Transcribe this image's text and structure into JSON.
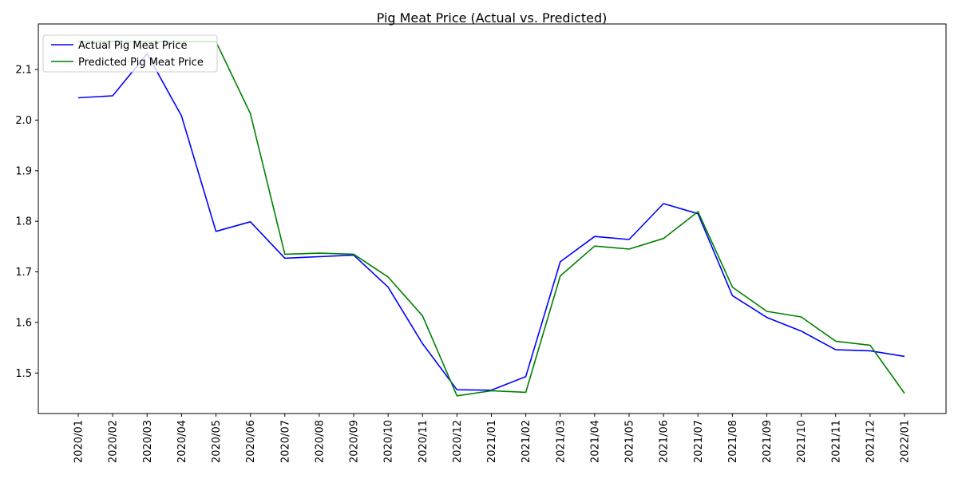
{
  "chart_data": {
    "type": "line",
    "title": "Pig Meat Price (Actual vs. Predicted)",
    "xlabel": "",
    "ylabel": "",
    "categories": [
      "2020/01",
      "2020/02",
      "2020/03",
      "2020/04",
      "2020/05",
      "2020/06",
      "2020/07",
      "2020/08",
      "2020/09",
      "2020/10",
      "2020/11",
      "2020/12",
      "2021/01",
      "2021/02",
      "2021/03",
      "2021/04",
      "2021/05",
      "2021/06",
      "2021/07",
      "2021/08",
      "2021/09",
      "2021/10",
      "2021/11",
      "2021/12",
      "2022/01"
    ],
    "series": [
      {
        "name": "Actual Pig Meat Price",
        "color": "#0000ff",
        "values": [
          2.044,
          2.048,
          2.131,
          2.008,
          1.78,
          1.799,
          1.727,
          1.73,
          1.733,
          1.67,
          1.558,
          1.467,
          1.466,
          1.493,
          1.72,
          1.77,
          1.764,
          1.835,
          1.815,
          1.653,
          1.61,
          1.583,
          1.546,
          1.544,
          1.533
        ]
      },
      {
        "name": "Predicted Pig Meat Price",
        "color": "#008000",
        "values": [
          2.155,
          2.155,
          2.155,
          2.155,
          2.155,
          2.013,
          1.735,
          1.737,
          1.735,
          1.69,
          1.613,
          1.455,
          1.465,
          1.462,
          1.692,
          1.751,
          1.745,
          1.766,
          1.819,
          1.67,
          1.622,
          1.611,
          1.563,
          1.555,
          1.46
        ]
      }
    ],
    "ylim": [
      1.42,
      2.19
    ],
    "yticks": [
      "1.5",
      "1.6",
      "1.7",
      "1.8",
      "1.9",
      "2.0",
      "2.1"
    ],
    "grid": false,
    "legend_position": "top-left"
  }
}
